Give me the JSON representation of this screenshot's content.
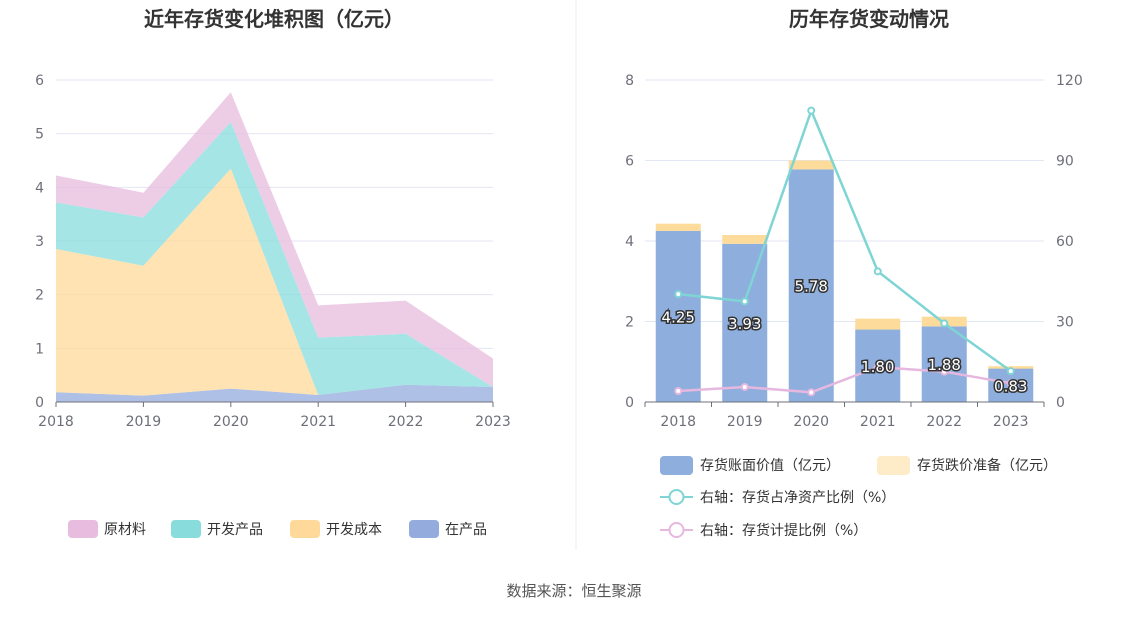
{
  "source": "数据来源：恒生聚源",
  "colors": {
    "raw": "#e7bcde",
    "finished": "#88dcdc",
    "devcost": "#ffd99a",
    "wip": "#93abdd",
    "bar_value": "#8eaedd",
    "bar_reserve": "#fddb9a",
    "line_ratio": "#7fd4d4",
    "line_provision": "#e6b8e0",
    "grid": "#e3e6f3",
    "axis": "#6e7079"
  },
  "chart_data": [
    {
      "type": "area",
      "title": "近年存货变化堆积图（亿元）",
      "x": [
        "2018",
        "2019",
        "2020",
        "2021",
        "2022",
        "2023"
      ],
      "ylim": [
        0,
        6
      ],
      "yticks": [
        "0",
        "1",
        "2",
        "3",
        "4",
        "5",
        "6"
      ],
      "stacked": true,
      "legend_position": "bottom",
      "series": [
        {
          "name": "在产品",
          "color_key": "wip",
          "values": [
            0.18,
            0.12,
            0.25,
            0.13,
            0.32,
            0.28
          ]
        },
        {
          "name": "开发成本",
          "color_key": "devcost",
          "values": [
            2.67,
            2.42,
            4.1,
            0.0,
            0.0,
            0.0
          ]
        },
        {
          "name": "开发产品",
          "color_key": "finished",
          "values": [
            0.87,
            0.9,
            0.87,
            1.07,
            0.95,
            0.0
          ]
        },
        {
          "name": "原材料",
          "color_key": "raw",
          "values": [
            0.5,
            0.46,
            0.55,
            0.6,
            0.62,
            0.53
          ]
        }
      ],
      "legend_order": [
        "原材料",
        "开发产品",
        "开发成本",
        "在产品"
      ]
    },
    {
      "type": "bar",
      "title": "历年存货变动情况",
      "x": [
        "2018",
        "2019",
        "2020",
        "2021",
        "2022",
        "2023"
      ],
      "ylim_left": [
        0,
        8
      ],
      "yticks_left": [
        "0",
        "2",
        "4",
        "6",
        "8"
      ],
      "ylim_right": [
        0,
        120
      ],
      "yticks_right": [
        "0",
        "30",
        "60",
        "90",
        "120"
      ],
      "legend_position": "bottom",
      "series": [
        {
          "name": "存货账面价值（亿元）",
          "kind": "bar",
          "stack": true,
          "color_key": "bar_value",
          "values": [
            4.25,
            3.93,
            5.78,
            1.8,
            1.88,
            0.83
          ],
          "labels": [
            "4.25",
            "3.93",
            "5.78",
            "1.80",
            "1.88",
            "0.83"
          ]
        },
        {
          "name": "存货跌价准备（亿元）",
          "kind": "bar",
          "stack": true,
          "color_key": "bar_reserve",
          "values": [
            0.18,
            0.22,
            0.22,
            0.27,
            0.24,
            0.06
          ]
        },
        {
          "name": "右轴：存货占净资产比例（%）",
          "kind": "line",
          "axis": "right",
          "color_key": "line_ratio",
          "values": [
            40.2,
            37.5,
            108.6,
            48.7,
            29.3,
            11.5
          ]
        },
        {
          "name": "右轴：存货计提比例（%）",
          "kind": "line",
          "axis": "right",
          "color_key": "line_provision",
          "values": [
            4.1,
            5.6,
            3.6,
            13.0,
            11.3,
            7.0
          ]
        }
      ]
    }
  ]
}
